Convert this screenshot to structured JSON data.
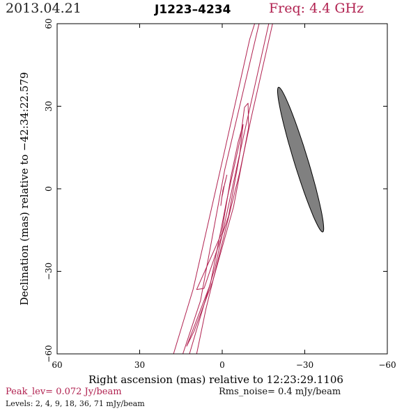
{
  "header": {
    "date": "2013.04.21",
    "source": "J1223–4234",
    "freq": "Freq: 4.4 GHz"
  },
  "chart_data": {
    "type": "contour",
    "xlabel": "Right ascension (mas) relative to 12:23:29.1106",
    "ylabel": "Declination (mas) relative to −42:34:22.579",
    "xlim": [
      60,
      -60
    ],
    "ylim": [
      -60,
      60
    ],
    "xticks": [
      60,
      30,
      0,
      -30,
      -60
    ],
    "yticks": [
      -60,
      -30,
      0,
      30,
      60
    ],
    "xtick_labels": [
      "60",
      "30",
      "0",
      "−30",
      "−60"
    ],
    "ytick_labels": [
      "−60",
      "−30",
      "0",
      "30",
      "60"
    ],
    "peak_level": "Peak_lev=  0.072 Jy/beam",
    "rms_noise": "Rms_noise=  0.4 mJy/beam",
    "levels_text": "Levels:  2,  4,  9,  18,  36,  71 mJy/beam",
    "levels_mJy": [
      2,
      4,
      9,
      18,
      36,
      71
    ],
    "contour_color": "#b0204f",
    "beam_color": "#808080",
    "contours": [
      {
        "level": 2,
        "points": [
          [
            17.7,
            -60
          ],
          [
            10.6,
            -36.6
          ],
          [
            -0.6,
            12.6
          ],
          [
            -10.0,
            54.4
          ],
          [
            -11.8,
            60
          ],
          [
            -18.3,
            60
          ],
          [
            -10.6,
            26.1
          ],
          [
            -6.3,
            5.8
          ],
          [
            5.9,
            -43.6
          ],
          [
            9.3,
            -60
          ]
        ]
      },
      {
        "level": 4,
        "points": [
          [
            14.3,
            -60
          ],
          [
            7.9,
            -40.7
          ],
          [
            -0.9,
            6.9
          ],
          [
            -13.4,
            60
          ],
          [
            -16.9,
            60
          ],
          [
            -7.4,
            17.5
          ],
          [
            2.5,
            -28.2
          ],
          [
            11.9,
            -60
          ]
        ]
      },
      {
        "level": 9,
        "points": [
          [
            12.9,
            -57.2
          ],
          [
            4.3,
            -34.6
          ],
          [
            -1.5,
            -4.9
          ],
          [
            -6.6,
            18.3
          ],
          [
            -8.1,
            29.6
          ],
          [
            -9.4,
            31.1
          ],
          [
            -9.6,
            22.3
          ],
          [
            -4.1,
            -6.6
          ],
          [
            3.4,
            -33.4
          ],
          [
            10.2,
            -51.7
          ]
        ]
      },
      {
        "level": 18,
        "points": [
          [
            9.3,
            -36.6
          ],
          [
            0.3,
            -16.4
          ],
          [
            -3.2,
            4.5
          ],
          [
            -5.8,
            17.0
          ],
          [
            -7.6,
            23.4
          ],
          [
            -6.3,
            12.1
          ],
          [
            -2.3,
            -9.9
          ],
          [
            6.6,
            -36.2
          ]
        ]
      },
      {
        "level": 36,
        "points": [
          [
            0.5,
            -6.1
          ],
          [
            0.2,
            -3.6
          ],
          [
            -0.7,
            0.9
          ],
          [
            -1.7,
            5.0
          ],
          [
            -1.0,
            2.2
          ],
          [
            0.0,
            -2.2
          ]
        ]
      },
      {
        "level": 71,
        "points": [
          [
            -0.1,
            -2.2
          ],
          [
            -0.3,
            -1.0
          ],
          [
            -0.6,
            0.9
          ],
          [
            -0.2,
            -0.7
          ]
        ]
      }
    ],
    "beam": {
      "center": [
        -28.5,
        10.6
      ],
      "major": 55,
      "minor": 5,
      "angle_deg": 73
    }
  }
}
